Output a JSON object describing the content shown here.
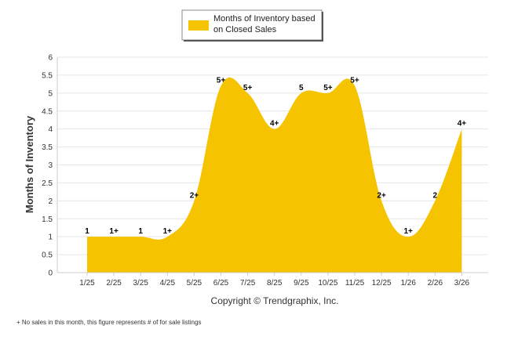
{
  "chart_data": {
    "type": "area",
    "title": "",
    "xlabel": "",
    "ylabel": "Months of Inventory",
    "ylim": [
      0,
      6
    ],
    "yticks": [
      "0",
      "0.5",
      "1",
      "1.5",
      "2",
      "2.5",
      "3",
      "3.5",
      "4",
      "4.5",
      "5",
      "5.5",
      "6"
    ],
    "ytick_values": [
      0,
      0.5,
      1,
      1.5,
      2,
      2.5,
      3,
      3.5,
      4,
      4.5,
      5,
      5.5,
      6
    ],
    "grid": true,
    "legend_position": "top-center",
    "categories": [
      "1/25",
      "2/25",
      "3/25",
      "4/25",
      "5/25",
      "6/25",
      "7/25",
      "8/25",
      "9/25",
      "10/25",
      "11/25",
      "12/25",
      "1/26",
      "2/26",
      "3/26"
    ],
    "series": [
      {
        "name": "Months of Inventory based on Closed Sales",
        "legend_lines": [
          "Months of Inventory based",
          "on Closed Sales"
        ],
        "color": "#F6C300",
        "values": [
          1,
          1,
          1,
          1,
          2,
          5.2,
          5,
          4,
          5,
          5,
          5.2,
          2,
          1,
          2,
          4
        ],
        "labels": [
          "1",
          "1+",
          "1",
          "1+",
          "2+",
          "5+",
          "5+",
          "4+",
          "5",
          "5+",
          "5+",
          "2+",
          "1+",
          "2",
          "4+"
        ]
      }
    ]
  },
  "copyright": "Copyright © Trendgraphix, Inc.",
  "footnote": "+ No sales in this month, this figure represents # of for sale listings"
}
